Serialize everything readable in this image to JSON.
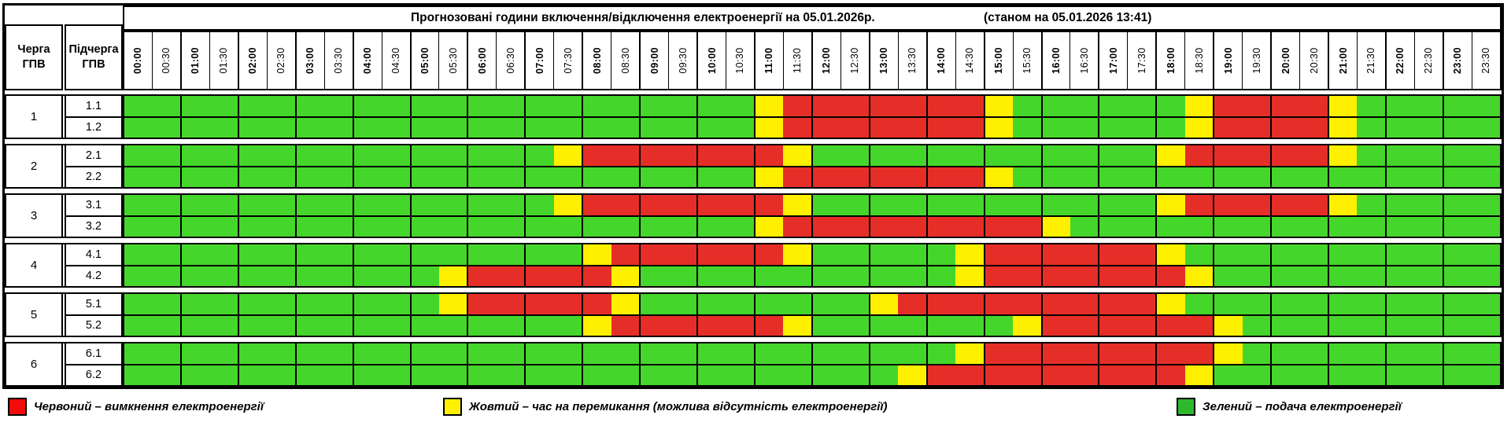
{
  "header": {
    "queue_label": "Черга\nГПВ",
    "subqueue_label": "Підчерга\nГПВ",
    "title": "Прогнозовані години включення/відключення електроенергії на 05.01.2026р.",
    "status": "(станом на 05.01.2026 13:41)",
    "times": [
      "00:00",
      "00:30",
      "01:00",
      "01:30",
      "02:00",
      "02:30",
      "03:00",
      "03:30",
      "04:00",
      "04:30",
      "05:00",
      "05:30",
      "06:00",
      "06:30",
      "07:00",
      "07:30",
      "08:00",
      "08:30",
      "09:00",
      "09:30",
      "10:00",
      "10:30",
      "11:00",
      "11:30",
      "12:00",
      "12:30",
      "13:00",
      "13:30",
      "14:00",
      "14:30",
      "15:00",
      "15:30",
      "16:00",
      "16:30",
      "17:00",
      "17:30",
      "18:00",
      "18:30",
      "19:00",
      "19:30",
      "20:00",
      "20:30",
      "21:00",
      "21:30",
      "22:00",
      "22:30",
      "23:00",
      "23:30"
    ]
  },
  "colors": {
    "G": "#45d62b",
    "Y": "#fff000",
    "R": "#e62e28"
  },
  "legend_colors": {
    "red": "#f40b0b",
    "yellow": "#fff000",
    "green": "#2eb82e"
  },
  "cell_legend": {
    "G": "подача електроенергії",
    "Y": "час на перемикання",
    "R": "вимкнення електроенергії"
  },
  "groups": [
    {
      "queue": "1",
      "rows": [
        {
          "label": "1.1",
          "cells": "GGGGGGGGGGGGGGGGGGGGGGYRRRRRRRYGGGGGGYRRRRYGGGGG"
        },
        {
          "label": "1.2",
          "cells": "GGGGGGGGGGGGGGGGGGGGGGYRRRRRRRYGGGGGGYRRRRYGGGGG"
        }
      ]
    },
    {
      "queue": "2",
      "rows": [
        {
          "label": "2.1",
          "cells": "GGGGGGGGGGGGGGGYRRRRRRRYGGGGGGGGGGGGYRRRRRYGGGGG"
        },
        {
          "label": "2.2",
          "cells": "GGGGGGGGGGGGGGGGGGGGGGYRRRRRRRYGGGGGGGGGGGGGGGGG"
        }
      ]
    },
    {
      "queue": "3",
      "rows": [
        {
          "label": "3.1",
          "cells": "GGGGGGGGGGGGGGGYRRRRRRRYGGGGGGGGGGGGYRRRRRYGGGGG"
        },
        {
          "label": "3.2",
          "cells": "GGGGGGGGGGGGGGGGGGGGGGYRRRRRRRRRYGGGGGGGGGGGGGGG"
        }
      ]
    },
    {
      "queue": "4",
      "rows": [
        {
          "label": "4.1",
          "cells": "GGGGGGGGGGGGGGGGYRRRRRRYGGGGGYRRRRRRYGGGGGGGGGGG"
        },
        {
          "label": "4.2",
          "cells": "GGGGGGGGGGGYRRRRRYGGGGGGGGGGGYRRRRRRRYGGGGGGGGGG"
        }
      ]
    },
    {
      "queue": "5",
      "rows": [
        {
          "label": "5.1",
          "cells": "GGGGGGGGGGGYRRRRRYGGGGGGGGYRRRRRRRRRYGGGGGGGGGGG"
        },
        {
          "label": "5.2",
          "cells": "GGGGGGGGGGGGGGGGYRRRRRRYGGGGGGGYRRRRRRYGGGGGGGGG"
        }
      ]
    },
    {
      "queue": "6",
      "rows": [
        {
          "label": "6.1",
          "cells": "GGGGGGGGGGGGGGGGGGGGGGGGGGGGGYRRRRRRRRYGGGGGGGGG"
        },
        {
          "label": "6.2",
          "cells": "GGGGGGGGGGGGGGGGGGGGGGGGGGGYRRRRRRRRRYGGGGGGGGGG"
        }
      ]
    }
  ],
  "legend": [
    {
      "swatch": "red",
      "label": "Червоний – вимкнення електроенергії"
    },
    {
      "swatch": "yellow",
      "label": "Жовтий – час на перемикання (можлива відсутність електроенергії)"
    },
    {
      "swatch": "green",
      "label": "Зелений – подача електроенергії"
    }
  ]
}
